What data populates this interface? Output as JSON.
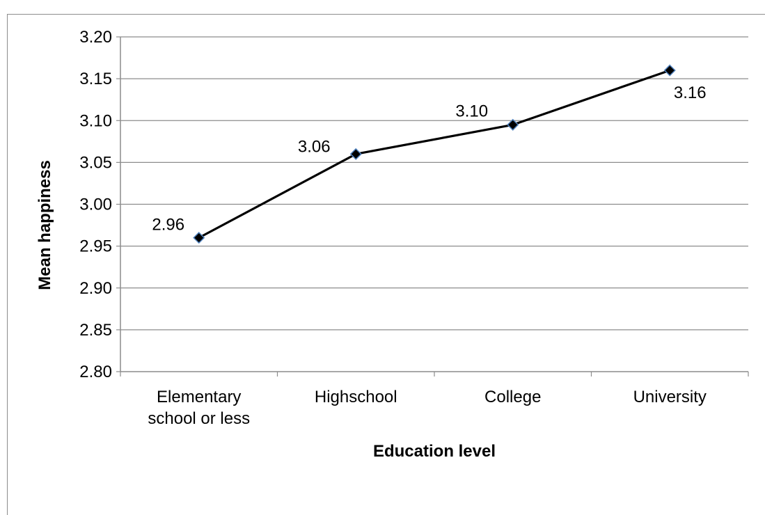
{
  "chart_data": {
    "type": "line",
    "title": "",
    "xlabel": "Education level",
    "ylabel": "Mean happiness",
    "categories": [
      [
        "Elementary",
        "school or less"
      ],
      [
        "Highschool"
      ],
      [
        "College"
      ],
      [
        "University"
      ]
    ],
    "values": [
      2.96,
      3.06,
      3.095,
      3.16
    ],
    "data_labels": [
      "2.96",
      "3.06",
      "3.10",
      "3.16"
    ],
    "ylim": [
      2.8,
      3.2
    ],
    "yticks": [
      "2.80",
      "2.85",
      "2.90",
      "2.95",
      "3.00",
      "3.05",
      "3.10",
      "3.15",
      "3.20"
    ],
    "grid": true,
    "legend": "none",
    "colors": {
      "line": "#000000",
      "marker_fill": "#000000",
      "marker_stroke": "#4f81bd",
      "grid": "#8c8c8c",
      "axis": "#8c8c8c"
    }
  }
}
